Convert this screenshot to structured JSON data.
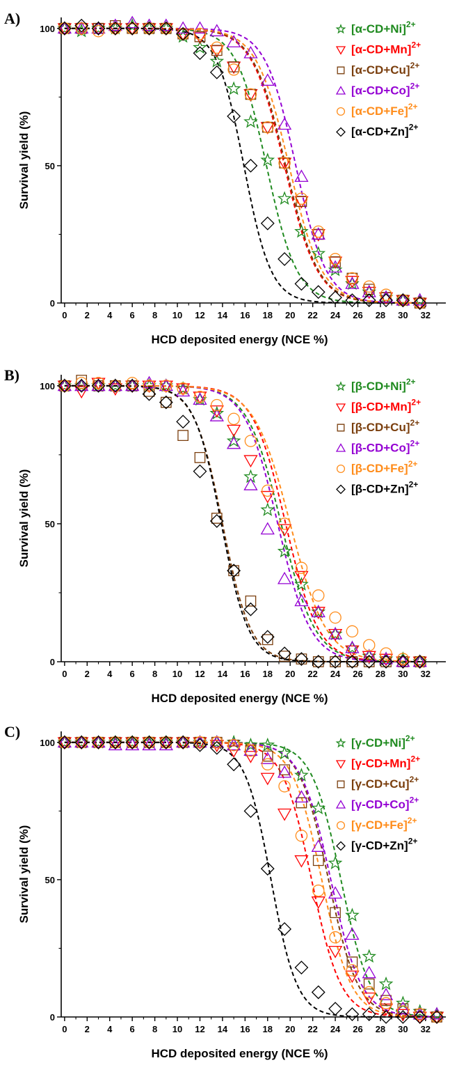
{
  "colors": {
    "Ni": "#1f8a1f",
    "Mn": "#ff0000",
    "Cu": "#7a3e0d",
    "Co": "#9400d3",
    "Fe": "#ff8c1a",
    "Zn": "#000000"
  },
  "symbols": {
    "Ni": "star",
    "Mn": "triangle-down",
    "Cu": "square",
    "Co": "triangle-up",
    "Fe": "circle",
    "Zn": "diamond"
  },
  "chart_data": [
    {
      "panel": "A)",
      "type": "scatter",
      "xlabel": "HCD deposited energy (NCE %)",
      "ylabel": "Survival yield (%)",
      "xticks": [
        0,
        2,
        4,
        6,
        8,
        10,
        12,
        14,
        16,
        18,
        20,
        22,
        24,
        26,
        28,
        30,
        32
      ],
      "yticks": [
        0,
        50,
        100
      ],
      "xlim": [
        -0.3,
        33.8
      ],
      "ylim": [
        0,
        104
      ],
      "legend_position": "top-right",
      "fit_lines": "dashed",
      "series": [
        {
          "key": "Ni",
          "name": "[α-CD+Ni]",
          "sup": "2+",
          "center": 17.9,
          "slope": 1.35,
          "x": [
            0,
            1.5,
            3,
            4.5,
            6,
            7.5,
            9,
            10.5,
            12,
            13.5,
            15,
            16.5,
            18,
            19.5,
            21,
            22.5,
            24,
            25.5,
            27,
            28.5,
            30,
            31.5
          ],
          "y": [
            100,
            99,
            100,
            100,
            101,
            100,
            100,
            97,
            93,
            88,
            78,
            66,
            52,
            38,
            26,
            18,
            12,
            7,
            4,
            2,
            1,
            1
          ]
        },
        {
          "key": "Mn",
          "name": "[α-CD+Mn]",
          "sup": "2+",
          "center": 19.5,
          "slope": 1.45,
          "x": [
            0,
            1.5,
            3,
            4.5,
            6,
            7.5,
            9,
            10.5,
            12,
            13.5,
            15,
            16.5,
            18,
            19.5,
            21,
            22.5,
            24,
            25.5,
            27,
            28.5,
            30,
            31.5
          ],
          "y": [
            100,
            100,
            100,
            100,
            100,
            100,
            100,
            98,
            97,
            92,
            86,
            76,
            64,
            51,
            37,
            25,
            15,
            8,
            4,
            2,
            1,
            0
          ]
        },
        {
          "key": "Cu",
          "name": "[α-CD+Cu]",
          "sup": "2+",
          "center": 19.6,
          "slope": 1.45,
          "x": [
            0,
            1.5,
            3,
            4.5,
            6,
            7.5,
            9,
            10.5,
            12,
            13.5,
            15,
            16.5,
            18,
            19.5,
            21,
            22.5,
            24,
            25.5,
            27,
            28.5,
            30,
            31.5
          ],
          "y": [
            100,
            100,
            100,
            101,
            100,
            100,
            100,
            98,
            97,
            92,
            86,
            76,
            64,
            51,
            37,
            25,
            15,
            9,
            5,
            2,
            1,
            0
          ]
        },
        {
          "key": "Co",
          "name": "[α-CD+Co]",
          "sup": "2+",
          "center": 20.5,
          "slope": 1.35,
          "x": [
            0,
            1.5,
            3,
            4.5,
            6,
            7.5,
            9,
            10.5,
            12,
            13.5,
            15,
            16.5,
            18,
            19.5,
            21,
            22.5,
            24,
            25.5,
            27,
            28.5,
            30,
            31.5
          ],
          "y": [
            100,
            100,
            100,
            101,
            102,
            101,
            101,
            100,
            100,
            99,
            95,
            91,
            81,
            65,
            46,
            25,
            13,
            7,
            4,
            2,
            1,
            1
          ]
        },
        {
          "key": "Fe",
          "name": "[α-CD+Fe]",
          "sup": "2+",
          "center": 19.9,
          "slope": 1.45,
          "x": [
            0,
            1.5,
            3,
            4.5,
            6,
            7.5,
            9,
            10.5,
            12,
            13.5,
            15,
            16.5,
            18,
            19.5,
            21,
            22.5,
            24,
            25.5,
            27,
            28.5,
            30,
            31.5
          ],
          "y": [
            100,
            100,
            99,
            100,
            100,
            100,
            100,
            98,
            98,
            93,
            85,
            76,
            64,
            51,
            38,
            26,
            16,
            9,
            6,
            3,
            1,
            0
          ]
        },
        {
          "key": "Zn",
          "name": "[α-CD+Zn]",
          "sup": "2+",
          "center": 15.9,
          "slope": 1.2,
          "x": [
            0,
            1.5,
            3,
            4.5,
            6,
            7.5,
            9,
            10.5,
            12,
            13.5,
            15,
            16.5,
            18,
            19.5,
            21,
            22.5,
            24,
            25.5,
            27,
            28.5,
            30,
            31.5
          ],
          "y": [
            100,
            101,
            100,
            100,
            100,
            100,
            100,
            98,
            91,
            84,
            68,
            50,
            29,
            16,
            7,
            4,
            2,
            1,
            1,
            1,
            1,
            0
          ]
        }
      ]
    },
    {
      "panel": "B)",
      "type": "scatter",
      "xlabel": "HCD deposited energy (NCE %)",
      "ylabel": "Survival yield (%)",
      "xticks": [
        0,
        2,
        4,
        6,
        8,
        10,
        12,
        14,
        16,
        18,
        20,
        22,
        24,
        26,
        28,
        30,
        32
      ],
      "yticks": [
        0,
        50,
        100
      ],
      "xlim": [
        -0.3,
        33.8
      ],
      "ylim": [
        0,
        104
      ],
      "legend_position": "top-right",
      "fit_lines": "dashed",
      "series": [
        {
          "key": "Ni",
          "name": "[β-CD+Ni]",
          "sup": "2+",
          "center": 19.2,
          "slope": 1.5,
          "x": [
            0,
            1.5,
            3,
            4.5,
            6,
            7.5,
            9,
            10.5,
            12,
            13.5,
            15,
            16.5,
            18,
            19.5,
            21,
            22.5,
            24,
            25.5,
            27,
            28.5,
            30,
            31.5
          ],
          "y": [
            100,
            100,
            100,
            100,
            100,
            100,
            100,
            99,
            95,
            90,
            80,
            67,
            55,
            40,
            28,
            18,
            10,
            5,
            2,
            1,
            1,
            0
          ]
        },
        {
          "key": "Mn",
          "name": "[β-CD+Mn]",
          "sup": "2+",
          "center": 19.6,
          "slope": 1.45,
          "x": [
            0,
            1.5,
            3,
            4.5,
            6,
            7.5,
            9,
            10.5,
            12,
            13.5,
            15,
            16.5,
            18,
            19.5,
            21,
            22.5,
            24,
            25.5,
            27,
            28.5,
            30,
            31.5
          ],
          "y": [
            100,
            98,
            101,
            99,
            100,
            100,
            100,
            99,
            96,
            91,
            84,
            73,
            60,
            48,
            31,
            18,
            10,
            4,
            2,
            1,
            0,
            0
          ]
        },
        {
          "key": "Cu",
          "name": "[β-CD+Cu]",
          "sup": "2+",
          "center": 14.0,
          "slope": 1.25,
          "x": [
            0,
            1.5,
            3,
            4.5,
            6,
            7.5,
            9,
            10.5,
            12,
            13.5,
            15,
            16.5,
            18,
            19.5,
            21,
            22.5,
            24,
            25.5,
            27,
            28.5,
            30,
            31.5
          ],
          "y": [
            100,
            102,
            100,
            100,
            100,
            98,
            94,
            82,
            74,
            52,
            33,
            22,
            8,
            2,
            1,
            0,
            0,
            0,
            0,
            0,
            0,
            0
          ]
        },
        {
          "key": "Co",
          "name": "[β-CD+Co]",
          "sup": "2+",
          "center": 18.9,
          "slope": 1.45,
          "x": [
            0,
            1.5,
            3,
            4.5,
            6,
            7.5,
            9,
            10.5,
            12,
            13.5,
            15,
            16.5,
            18,
            19.5,
            21,
            22.5,
            24,
            25.5,
            27,
            28.5,
            30,
            31.5
          ],
          "y": [
            100,
            100,
            100,
            100,
            100,
            101,
            100,
            98,
            95,
            89,
            79,
            64,
            48,
            30,
            22,
            18,
            10,
            5,
            2,
            1,
            0,
            0
          ]
        },
        {
          "key": "Fe",
          "name": "[β-CD+Fe]",
          "sup": "2+",
          "center": 20.0,
          "slope": 1.6,
          "x": [
            0,
            1.5,
            3,
            4.5,
            6,
            7.5,
            9,
            10.5,
            12,
            13.5,
            15,
            16.5,
            18,
            19.5,
            21,
            22.5,
            24,
            25.5,
            27,
            28.5,
            30,
            31.5
          ],
          "y": [
            100,
            101,
            101,
            100,
            101,
            100,
            100,
            99,
            96,
            93,
            88,
            80,
            62,
            50,
            34,
            24,
            16,
            11,
            6,
            3,
            1,
            0
          ]
        },
        {
          "key": "Zn",
          "name": "[β-CD+Zn]",
          "sup": "2+",
          "center": 13.9,
          "slope": 1.2,
          "x": [
            0,
            1.5,
            3,
            4.5,
            6,
            7.5,
            9,
            10.5,
            12,
            13.5,
            15,
            16.5,
            18,
            19.5,
            21,
            22.5,
            24,
            25.5,
            27,
            28.5,
            30,
            31.5
          ],
          "y": [
            100,
            100,
            100,
            100,
            100,
            97,
            94,
            87,
            69,
            51,
            33,
            19,
            9,
            3,
            1,
            0,
            0,
            0,
            0,
            0,
            0,
            0
          ]
        }
      ]
    },
    {
      "panel": "C)",
      "type": "scatter",
      "xlabel": "HCD deposited energy (NCE %)",
      "ylabel": "Survival yield (%)",
      "xticks": [
        0,
        2,
        4,
        6,
        8,
        10,
        12,
        14,
        16,
        18,
        20,
        22,
        24,
        26,
        28,
        30,
        32
      ],
      "yticks": [
        0,
        50,
        100
      ],
      "xlim": [
        -0.3,
        33.8
      ],
      "ylim": [
        0,
        104
      ],
      "legend_position": "top-right",
      "fit_lines": "dashed",
      "series": [
        {
          "key": "Ni",
          "name": "[γ-CD+Ni]",
          "sup": "2+",
          "center": 24.5,
          "slope": 1.3,
          "x": [
            0,
            1.5,
            3,
            4.5,
            6,
            7.5,
            9,
            10.5,
            12,
            13.5,
            15,
            16.5,
            18,
            19.5,
            21,
            22.5,
            24,
            25.5,
            27,
            28.5,
            30,
            31.5,
            33
          ],
          "y": [
            100,
            100,
            100,
            100,
            100,
            100,
            100,
            100,
            100,
            100,
            100,
            99,
            99,
            96,
            88,
            76,
            56,
            37,
            22,
            12,
            5,
            2,
            1
          ]
        },
        {
          "key": "Mn",
          "name": "[γ-CD+Mn]",
          "sup": "2+",
          "center": 21.9,
          "slope": 1.3,
          "x": [
            0,
            1.5,
            3,
            4.5,
            6,
            7.5,
            9,
            10.5,
            12,
            13.5,
            15,
            16.5,
            18,
            19.5,
            21,
            22.5,
            24,
            25.5,
            27,
            28.5,
            30,
            31.5,
            33
          ],
          "y": [
            100,
            100,
            100,
            100,
            100,
            100,
            100,
            100,
            100,
            99,
            97,
            95,
            87,
            74,
            57,
            42,
            24,
            15,
            7,
            3,
            1,
            0,
            0
          ]
        },
        {
          "key": "Cu",
          "name": "[γ-CD+Cu]",
          "sup": "2+",
          "center": 23.4,
          "slope": 1.3,
          "x": [
            0,
            1.5,
            3,
            4.5,
            6,
            7.5,
            9,
            10.5,
            12,
            13.5,
            15,
            16.5,
            18,
            19.5,
            21,
            22.5,
            24,
            25.5,
            27,
            28.5,
            30,
            31.5,
            33
          ],
          "y": [
            100,
            100,
            100,
            100,
            100,
            100,
            100,
            100,
            100,
            100,
            99,
            97,
            95,
            90,
            78,
            57,
            38,
            20,
            12,
            6,
            3,
            1,
            0
          ]
        },
        {
          "key": "Co",
          "name": "[γ-CD+Co]",
          "sup": "2+",
          "center": 23.6,
          "slope": 1.35,
          "x": [
            0,
            1.5,
            3,
            4.5,
            6,
            7.5,
            9,
            10.5,
            12,
            13.5,
            15,
            16.5,
            18,
            19.5,
            21,
            22.5,
            24,
            25.5,
            27,
            28.5,
            30,
            31.5,
            33
          ],
          "y": [
            100,
            100,
            100,
            99,
            99,
            99,
            99,
            100,
            100,
            100,
            99,
            97,
            94,
            89,
            80,
            62,
            45,
            30,
            16,
            8,
            3,
            1,
            1
          ]
        },
        {
          "key": "Fe",
          "name": "[γ-CD+Fe]",
          "sup": "2+",
          "center": 22.8,
          "slope": 1.3,
          "x": [
            0,
            1.5,
            3,
            4.5,
            6,
            7.5,
            9,
            10.5,
            12,
            13.5,
            15,
            16.5,
            18,
            19.5,
            21,
            22.5,
            24,
            25.5,
            27,
            28.5,
            30,
            31.5,
            33
          ],
          "y": [
            100,
            100,
            100,
            100,
            100,
            100,
            100,
            100,
            100,
            100,
            99,
            97,
            92,
            84,
            66,
            46,
            29,
            17,
            9,
            5,
            2,
            1,
            0
          ]
        },
        {
          "key": "Zn",
          "name": "[γ-CD+Zn]",
          "sup": "2+",
          "center": 18.3,
          "slope": 1.15,
          "x": [
            0,
            1.5,
            3,
            4.5,
            6,
            7.5,
            9,
            10.5,
            12,
            13.5,
            15,
            16.5,
            18,
            19.5,
            21,
            22.5,
            24,
            25.5,
            27,
            28.5,
            30,
            31.5,
            33
          ],
          "y": [
            100,
            100,
            100,
            100,
            100,
            100,
            100,
            100,
            99,
            98,
            92,
            75,
            54,
            32,
            18,
            9,
            3,
            1,
            1,
            0,
            0,
            0,
            0
          ]
        }
      ]
    }
  ]
}
